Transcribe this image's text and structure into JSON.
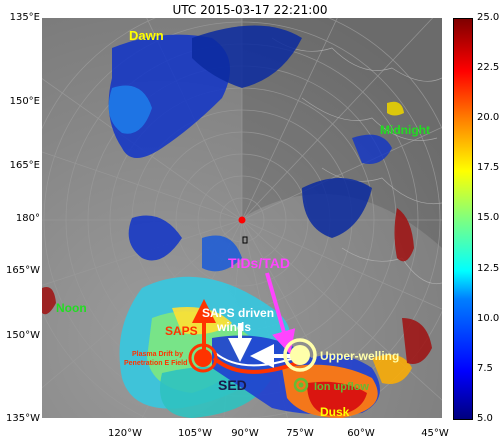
{
  "title": "UTC 2015-03-17 22:21:00",
  "lat_labels": [
    "135°E",
    "150°E",
    "165°E",
    "180°",
    "165°W",
    "150°W",
    "135°W"
  ],
  "lon_labels": [
    "120°W",
    "105°W",
    "90°W",
    "75°W",
    "60°W",
    "45°W"
  ],
  "colorbar": {
    "ticks": [
      "25.0",
      "22.5",
      "20.0",
      "17.5",
      "15.0",
      "12.5",
      "10.0",
      "7.5",
      "5.0"
    ],
    "min": 5.0,
    "max": 25.0
  },
  "annotations": {
    "dawn": "Dawn",
    "midnight": "Midnight",
    "noon": "Noon",
    "dusk": "Dusk",
    "tids": "TIDs/TAD",
    "saps_winds_1": "SAPS driven",
    "saps_winds_2": "winds",
    "saps": "SAPS",
    "plasma_drift_1": "Plasma Drift by",
    "plasma_drift_2": "Penetration E Field",
    "sed": "SED",
    "upwelling": "Upper-welling",
    "ion_upflow": "Ion upflow"
  },
  "colors": {
    "background": "#7f7f7f",
    "dawn": "#ffff00",
    "midnight": "#22dd22",
    "noon": "#22dd22",
    "dusk": "#ffff00",
    "tids": "#ff44ff",
    "saps": "#ff3300",
    "sed": "#1a1a4a",
    "upwelling": "#ffffaa",
    "ion_upflow": "#66bb33",
    "arrow": "#ffffff"
  }
}
